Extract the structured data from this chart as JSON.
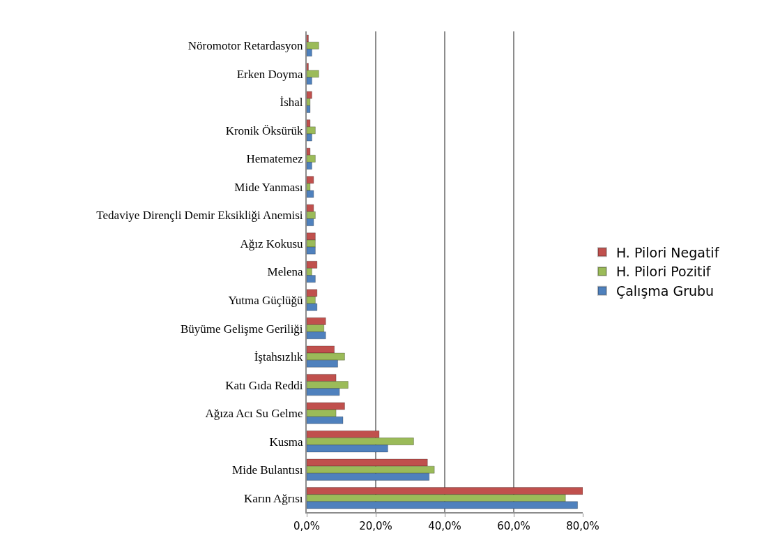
{
  "chart_data": {
    "type": "bar",
    "orientation": "horizontal",
    "categories": [
      "Nöromotor Retardasyon",
      "Erken Doyma",
      "İshal",
      "Kronik Öksürük",
      "Hematemez",
      "Mide Yanması",
      "Tedaviye Dirençli Demir Eksikliği Anemisi",
      "Ağız Kokusu",
      "Melena",
      "Yutma Güçlüğü",
      "Büyüme Gelişme Geriliği",
      "İştahsızlık",
      "Katı Gıda Reddi",
      "Ağıza Acı Su Gelme",
      "Kusma",
      "Mide Bulantısı",
      "Karın Ağrısı"
    ],
    "series": [
      {
        "name": "H. Pilori Negatif",
        "color": "#c0504d",
        "values": [
          0.5,
          0.5,
          1.5,
          1,
          1,
          2,
          2,
          2.5,
          3,
          3,
          5.5,
          8,
          8.5,
          11,
          21,
          35,
          80
        ]
      },
      {
        "name": "H. Pilori Pozitif",
        "color": "#9bbb59",
        "values": [
          3.5,
          3.5,
          1,
          2.5,
          2.5,
          1,
          2.5,
          2.5,
          1.5,
          2.5,
          5,
          11,
          12,
          8.5,
          31,
          37,
          75
        ]
      },
      {
        "name": "Çalışma Grubu",
        "color": "#4f81bd",
        "values": [
          1.5,
          1.5,
          1,
          1.5,
          1.5,
          2,
          2,
          2.5,
          2.5,
          3,
          5.5,
          9,
          9.5,
          10.5,
          23.5,
          35.5,
          78.5
        ]
      }
    ],
    "xlim": [
      0,
      80
    ],
    "xticks": [
      {
        "value": 0,
        "label": "0,0%"
      },
      {
        "value": 20,
        "label": "20,0%"
      },
      {
        "value": 40,
        "label": "40,0%"
      },
      {
        "value": 60,
        "label": "60,0%"
      },
      {
        "value": 80,
        "label": "80,0%"
      }
    ],
    "grid": "x",
    "legend": "right"
  }
}
